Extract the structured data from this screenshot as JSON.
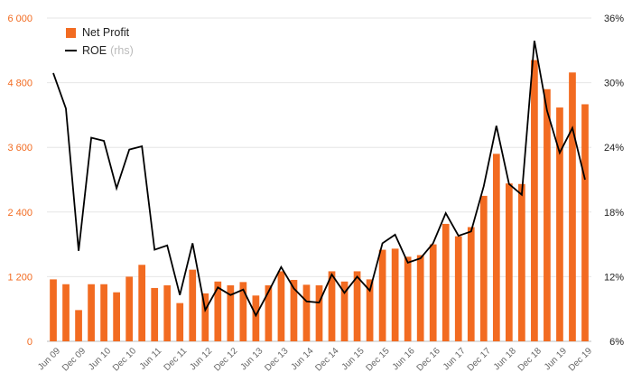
{
  "chart_data": {
    "type": "bar",
    "categories": [
      "Jun 09",
      "Sep 09",
      "Dec 09",
      "Mar 10",
      "Jun 10",
      "Sep 10",
      "Dec 10",
      "Mar 11",
      "Jun 11",
      "Sep 11",
      "Dec 11",
      "Mar 12",
      "Jun 12",
      "Sep 12",
      "Dec 12",
      "Mar 13",
      "Jun 13",
      "Sep 13",
      "Dec 13",
      "Mar 14",
      "Jun 14",
      "Sep 14",
      "Dec 14",
      "Mar 15",
      "Jun 15",
      "Sep 15",
      "Dec 15",
      "Mar 16",
      "Jun 16",
      "Sep 16",
      "Dec 16",
      "Mar 17",
      "Jun 17",
      "Sep 17",
      "Dec 17",
      "Mar 18",
      "Jun 18",
      "Sep 18",
      "Dec 18",
      "Mar 19",
      "Jun 19",
      "Sep 19",
      "Dec 19"
    ],
    "x_tick_labels": [
      "Jun 09",
      "Dec 09",
      "Jun 10",
      "Dec 10",
      "Jun 11",
      "Dec 11",
      "Jun 12",
      "Dec 12",
      "Jun 13",
      "Dec 13",
      "Jun 14",
      "Dec 14",
      "Jun 15",
      "Dec 15",
      "Jun 16",
      "Dec 16",
      "Jun 17",
      "Dec 17",
      "Jun 18",
      "Dec 18",
      "Jun 19",
      "Dec 19"
    ],
    "series": [
      {
        "name": "Net Profit",
        "kind": "bar",
        "axis": "left",
        "color": "#f26b21",
        "values": [
          1150,
          1060,
          580,
          1060,
          1060,
          910,
          1200,
          1420,
          990,
          1040,
          710,
          1330,
          890,
          1110,
          1040,
          1100,
          850,
          1040,
          1300,
          1140,
          1050,
          1040,
          1300,
          1110,
          1300,
          1150,
          1700,
          1720,
          1570,
          1600,
          1800,
          2180,
          1950,
          2120,
          2700,
          3480,
          2930,
          2920,
          5220,
          4680,
          4340,
          4990,
          4400
        ]
      },
      {
        "name": "ROE",
        "name_suffix": "(rhs)",
        "kind": "line",
        "axis": "right",
        "color": "#000000",
        "values": [
          30.9,
          27.6,
          14.4,
          24.9,
          24.6,
          20.2,
          23.8,
          24.1,
          14.5,
          14.9,
          10.3,
          15.1,
          8.9,
          11.0,
          10.3,
          10.8,
          8.4,
          10.6,
          12.9,
          10.9,
          9.7,
          9.6,
          12.2,
          10.5,
          12.0,
          10.7,
          15.1,
          15.9,
          13.3,
          13.7,
          15.1,
          17.9,
          15.8,
          16.2,
          20.4,
          26.0,
          20.6,
          19.6,
          33.9,
          27.4,
          23.5,
          25.8,
          21.0
        ]
      }
    ],
    "y_left": {
      "min": 0,
      "max": 6000,
      "ticks": [
        0,
        1200,
        2400,
        3600,
        4800,
        6000
      ],
      "tick_labels": [
        "0",
        "1 200",
        "2 400",
        "3 600",
        "4 800",
        "6 000"
      ],
      "color": "#f26b21"
    },
    "y_right": {
      "min": 6,
      "max": 36,
      "ticks": [
        6,
        12,
        18,
        24,
        30,
        36
      ],
      "tick_labels": [
        "6%",
        "12%",
        "18%",
        "24%",
        "30%",
        "36%"
      ],
      "color": "#222222"
    },
    "grid": true,
    "legend_position": "top-left"
  },
  "legend": {
    "items": [
      {
        "label": "Net Profit",
        "sub": ""
      },
      {
        "label": "ROE",
        "sub": "(rhs)"
      }
    ]
  }
}
